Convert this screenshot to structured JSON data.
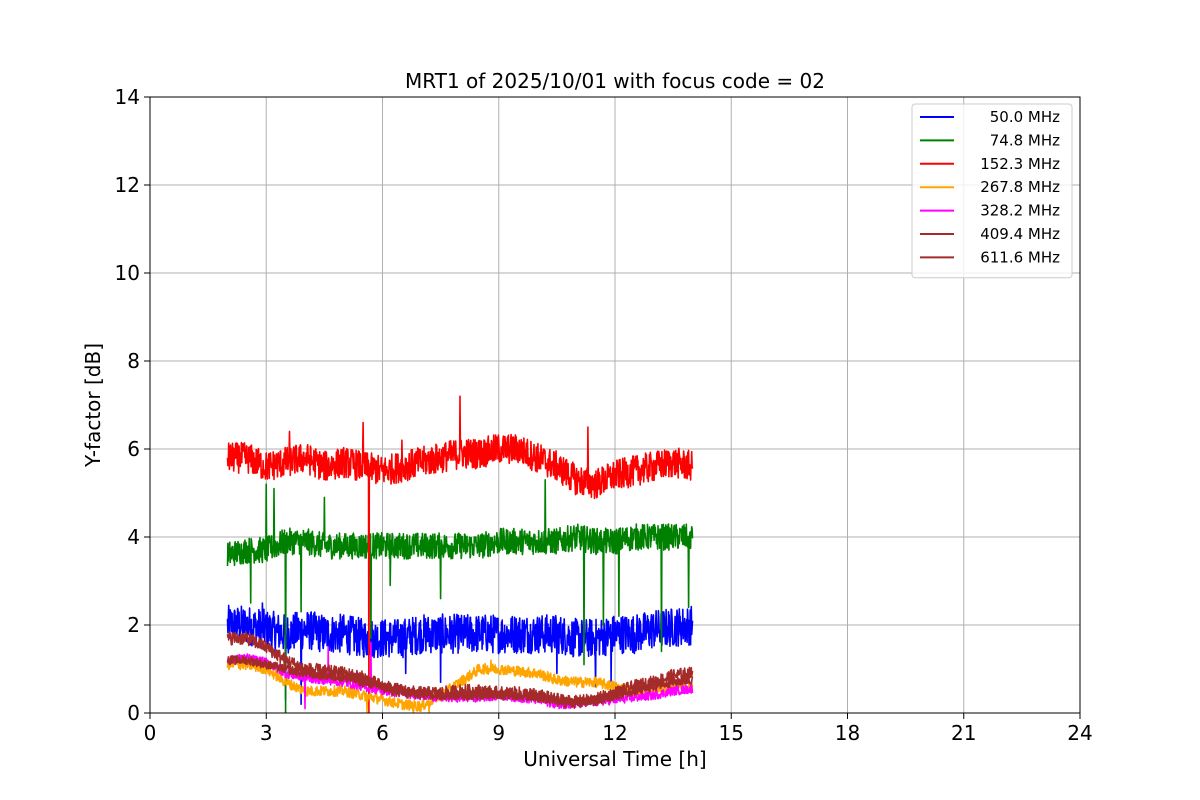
{
  "chart_data": {
    "type": "line",
    "title": "MRT1 of 2025/10/01 with focus code = 02",
    "xlabel": "Universal Time [h]",
    "ylabel": "Y-factor [dB]",
    "xlim": [
      0,
      24
    ],
    "ylim": [
      0,
      14
    ],
    "xticks": [
      0,
      3,
      6,
      9,
      12,
      15,
      18,
      21,
      24
    ],
    "yticks": [
      0,
      2,
      4,
      6,
      8,
      10,
      12,
      14
    ],
    "grid": true,
    "legend_position": "top-right",
    "series": [
      {
        "name": "50.0 MHz",
        "color": "#0000ff",
        "x": [
          2.0,
          2.5,
          3.0,
          3.5,
          4.0,
          4.5,
          5.0,
          5.5,
          6.0,
          6.5,
          7.0,
          7.5,
          8.0,
          8.5,
          9.0,
          9.5,
          10.0,
          10.5,
          11.0,
          11.5,
          12.0,
          12.5,
          13.0,
          13.5,
          14.0
        ],
        "y": [
          2.0,
          2.0,
          1.9,
          1.8,
          1.9,
          1.8,
          1.8,
          1.7,
          1.7,
          1.7,
          1.8,
          1.8,
          1.8,
          1.8,
          1.8,
          1.8,
          1.8,
          1.8,
          1.7,
          1.7,
          1.8,
          1.8,
          1.9,
          1.95,
          2.0
        ],
        "spikes": [
          [
            3.5,
            0.3
          ],
          [
            3.9,
            0.2
          ],
          [
            6.6,
            0.9
          ],
          [
            7.5,
            0.7
          ],
          [
            10.5,
            0.9
          ],
          [
            11.5,
            0.6
          ],
          [
            11.9,
            0.7
          ],
          [
            2.9,
            2.5
          ]
        ]
      },
      {
        "name": "74.8 MHz",
        "color": "#008000",
        "x": [
          2.0,
          2.5,
          3.0,
          3.5,
          4.0,
          4.5,
          5.0,
          5.5,
          6.0,
          6.5,
          7.0,
          7.5,
          8.0,
          8.5,
          9.0,
          9.5,
          10.0,
          10.5,
          11.0,
          11.5,
          12.0,
          12.5,
          13.0,
          13.5,
          14.0
        ],
        "y": [
          3.6,
          3.7,
          3.7,
          3.9,
          3.9,
          3.8,
          3.8,
          3.8,
          3.8,
          3.8,
          3.8,
          3.8,
          3.8,
          3.8,
          3.9,
          3.9,
          3.9,
          3.9,
          4.0,
          3.9,
          3.9,
          4.0,
          4.0,
          4.0,
          4.0
        ],
        "spikes": [
          [
            2.6,
            2.5
          ],
          [
            3.0,
            5.2
          ],
          [
            3.2,
            5.1
          ],
          [
            3.5,
            0.0
          ],
          [
            3.9,
            2.3
          ],
          [
            4.5,
            4.9
          ],
          [
            5.7,
            1.7
          ],
          [
            6.2,
            2.9
          ],
          [
            7.5,
            2.6
          ],
          [
            10.2,
            5.3
          ],
          [
            11.2,
            1.1
          ],
          [
            11.7,
            2.0
          ],
          [
            12.1,
            2.2
          ],
          [
            13.2,
            1.4
          ],
          [
            13.9,
            2.4
          ]
        ]
      },
      {
        "name": "152.3 MHz",
        "color": "#ff0000",
        "x": [
          2.0,
          2.5,
          3.0,
          3.5,
          4.0,
          4.5,
          5.0,
          5.5,
          6.0,
          6.5,
          7.0,
          7.5,
          8.0,
          8.5,
          9.0,
          9.5,
          10.0,
          10.5,
          11.0,
          11.5,
          12.0,
          12.5,
          13.0,
          13.5,
          14.0
        ],
        "y": [
          5.8,
          5.8,
          5.6,
          5.7,
          5.8,
          5.6,
          5.7,
          5.6,
          5.5,
          5.6,
          5.7,
          5.8,
          5.9,
          5.9,
          6.0,
          6.0,
          5.8,
          5.6,
          5.3,
          5.2,
          5.4,
          5.5,
          5.6,
          5.7,
          5.6
        ],
        "spikes": [
          [
            3.6,
            6.4
          ],
          [
            5.5,
            6.6
          ],
          [
            5.65,
            0.0
          ],
          [
            8.0,
            7.2
          ],
          [
            11.3,
            6.5
          ],
          [
            6.5,
            6.2
          ]
        ]
      },
      {
        "name": "267.8 MHz",
        "color": "#ffa500",
        "x": [
          2.0,
          2.5,
          3.0,
          3.5,
          4.0,
          4.5,
          5.0,
          5.5,
          6.0,
          6.5,
          7.0,
          7.5,
          8.0,
          8.5,
          9.0,
          9.5,
          10.0,
          10.5,
          11.0,
          11.5,
          12.0,
          12.5,
          13.0,
          13.5,
          14.0
        ],
        "y": [
          1.1,
          1.1,
          1.0,
          0.7,
          0.5,
          0.5,
          0.5,
          0.4,
          0.3,
          0.2,
          0.15,
          0.4,
          0.7,
          1.0,
          1.0,
          0.95,
          0.9,
          0.75,
          0.7,
          0.7,
          0.6,
          0.5,
          0.5,
          0.6,
          0.6
        ],
        "spikes": [
          [
            5.6,
            0.0
          ],
          [
            6.8,
            0.0
          ],
          [
            7.2,
            0.0
          ],
          [
            8.8,
            1.2
          ]
        ]
      },
      {
        "name": "328.2 MHz",
        "color": "#ff00ff",
        "x": [
          2.0,
          2.5,
          3.0,
          3.5,
          4.0,
          4.5,
          5.0,
          5.5,
          6.0,
          6.5,
          7.0,
          7.5,
          8.0,
          8.5,
          9.0,
          9.5,
          10.0,
          10.5,
          11.0,
          11.5,
          12.0,
          12.5,
          13.0,
          13.5,
          14.0
        ],
        "y": [
          1.2,
          1.25,
          1.15,
          0.9,
          0.8,
          0.75,
          0.7,
          0.6,
          0.5,
          0.45,
          0.4,
          0.35,
          0.35,
          0.35,
          0.4,
          0.35,
          0.3,
          0.2,
          0.2,
          0.25,
          0.3,
          0.35,
          0.4,
          0.5,
          0.55
        ],
        "spikes": [
          [
            4.6,
            1.5
          ],
          [
            5.7,
            1.6
          ],
          [
            4.0,
            0.1
          ]
        ]
      },
      {
        "name": "409.4 MHz",
        "color": "#a52a2a",
        "x": [
          2.0,
          2.5,
          3.0,
          3.5,
          4.0,
          4.5,
          5.0,
          5.5,
          6.0,
          6.5,
          7.0,
          7.5,
          8.0,
          8.5,
          9.0,
          9.5,
          10.0,
          10.5,
          11.0,
          11.5,
          12.0,
          12.5,
          13.0,
          13.5,
          14.0
        ],
        "y": [
          1.2,
          1.2,
          1.1,
          1.0,
          0.9,
          0.85,
          0.8,
          0.7,
          0.6,
          0.5,
          0.45,
          0.4,
          0.4,
          0.4,
          0.45,
          0.4,
          0.35,
          0.3,
          0.25,
          0.3,
          0.4,
          0.5,
          0.6,
          0.7,
          0.75
        ],
        "spikes": []
      },
      {
        "name": "611.6 MHz",
        "color": "#a52a2a",
        "x": [
          2.0,
          2.5,
          3.0,
          3.5,
          4.0,
          4.5,
          5.0,
          5.5,
          6.0,
          6.5,
          7.0,
          7.5,
          8.0,
          8.5,
          9.0,
          9.5,
          10.0,
          10.5,
          11.0,
          11.5,
          12.0,
          12.5,
          13.0,
          13.5,
          14.0
        ],
        "y": [
          1.7,
          1.7,
          1.5,
          1.2,
          1.0,
          0.95,
          0.9,
          0.8,
          0.6,
          0.5,
          0.45,
          0.45,
          0.5,
          0.5,
          0.45,
          0.45,
          0.4,
          0.3,
          0.25,
          0.3,
          0.45,
          0.6,
          0.7,
          0.85,
          0.9
        ],
        "spikes": []
      }
    ]
  }
}
